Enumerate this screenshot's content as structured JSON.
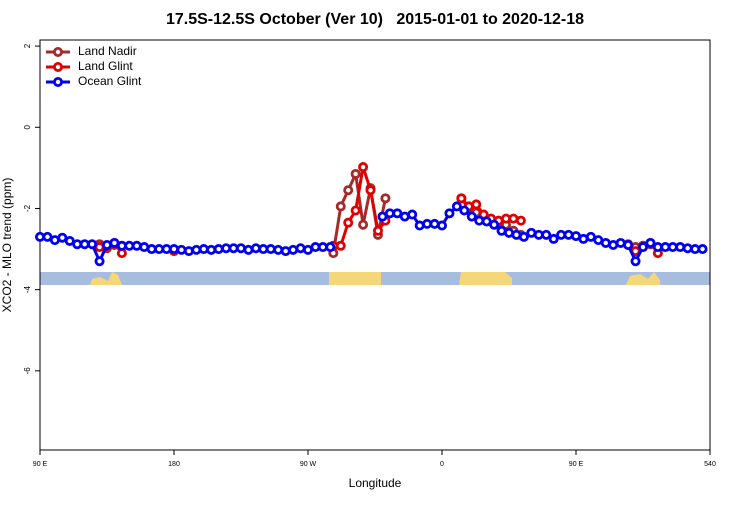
{
  "chart_data": {
    "type": "line",
    "title": "17.5S-12.5S October (Ver 10)   2015-01-01 to 2020-12-18",
    "xlabel": "Longitude",
    "ylabel": "XCO2 - MLO trend (ppm)",
    "xlim": [
      90,
      540
    ],
    "ylim": [
      -7.95,
      2.15
    ],
    "xticks": [
      {
        "value": 90,
        "label": "90 E"
      },
      180,
      {
        "value": 270,
        "label": "90 W"
      },
      {
        "value": 360,
        "label": "0"
      },
      {
        "value": 450,
        "label": "90 E"
      },
      540
    ],
    "yticks": [
      2,
      0,
      -2,
      -4,
      -6
    ],
    "legend": "topleft",
    "series": [
      {
        "name": "Land Nadir",
        "color": "#a52a2a",
        "x": [
          130,
          135,
          140,
          145,
          287,
          292,
          297,
          302,
          307,
          312,
          317,
          322,
          327,
          373,
          378,
          383,
          388,
          393,
          398,
          403,
          408,
          413,
          418,
          485,
          490,
          495,
          500
        ],
        "values": [
          -2.88,
          -2.98,
          -2.9,
          null,
          -3.1,
          -1.95,
          -1.55,
          -1.15,
          -2.4,
          -1.5,
          -2.65,
          -1.75,
          null,
          -1.75,
          -2.0,
          -2.1,
          -2.2,
          -2.3,
          -2.35,
          -2.4,
          -2.55,
          -2.65,
          null,
          -2.88,
          -2.95,
          -2.92,
          -2.88
        ]
      },
      {
        "name": "Land Glint",
        "color": "#e00000",
        "x": [
          130,
          135,
          140,
          145,
          150,
          180,
          185,
          287,
          292,
          297,
          302,
          307,
          312,
          317,
          322,
          327,
          373,
          378,
          383,
          388,
          393,
          398,
          403,
          408,
          413,
          418,
          485,
          490,
          495,
          500,
          505
        ],
        "values": [
          -2.95,
          -2.92,
          -2.85,
          -3.1,
          null,
          -3.05,
          null,
          -2.92,
          -2.92,
          -2.35,
          -2.05,
          -0.98,
          -1.55,
          -2.55,
          -2.3,
          null,
          -1.75,
          -1.95,
          -1.9,
          -2.15,
          -2.25,
          -2.3,
          -2.25,
          -2.25,
          -2.3,
          null,
          -2.9,
          -3.05,
          -2.95,
          -2.85,
          -3.1
        ]
      },
      {
        "name": "Ocean Glint",
        "color": "#0000ee",
        "x": [
          90,
          95,
          100,
          105,
          110,
          115,
          120,
          125,
          130,
          135,
          140,
          145,
          150,
          155,
          160,
          165,
          170,
          175,
          180,
          185,
          190,
          195,
          200,
          205,
          210,
          215,
          220,
          225,
          230,
          235,
          240,
          245,
          250,
          255,
          260,
          265,
          270,
          275,
          280,
          285,
          290,
          295,
          300,
          305,
          310,
          315,
          320,
          325,
          330,
          335,
          340,
          345,
          350,
          355,
          360,
          365,
          370,
          375,
          380,
          385,
          390,
          395,
          400,
          405,
          410,
          415,
          420,
          425,
          430,
          435,
          440,
          445,
          450,
          455,
          460,
          465,
          470,
          475,
          480,
          485,
          490,
          495,
          500,
          505,
          510,
          515,
          520,
          525,
          530,
          535
        ],
        "values": [
          -2.7,
          -2.7,
          -2.78,
          -2.72,
          -2.8,
          -2.88,
          -2.88,
          -2.88,
          -3.3,
          -2.9,
          -2.85,
          -2.92,
          -2.92,
          -2.92,
          -2.95,
          -3.0,
          -3.0,
          -3.0,
          -3.0,
          -3.02,
          -3.05,
          -3.02,
          -3.0,
          -3.02,
          -3.0,
          -2.98,
          -2.98,
          -2.98,
          -3.02,
          -2.98,
          -3.0,
          -3.0,
          -3.02,
          -3.05,
          -3.02,
          -2.98,
          -3.02,
          -2.95,
          -2.95,
          -2.95,
          null,
          null,
          null,
          null,
          null,
          null,
          -2.2,
          -2.12,
          -2.12,
          -2.2,
          -2.15,
          -2.42,
          -2.38,
          -2.38,
          -2.42,
          -2.12,
          -1.95,
          -2.05,
          -2.2,
          -2.3,
          -2.32,
          -2.4,
          -2.55,
          -2.6,
          -2.65,
          -2.7,
          -2.6,
          -2.65,
          -2.65,
          -2.75,
          -2.65,
          -2.65,
          -2.68,
          -2.75,
          -2.7,
          -2.78,
          -2.85,
          -2.9,
          -2.85,
          -2.9,
          -3.3,
          -2.95,
          -2.85,
          -2.95,
          -2.95,
          -2.95,
          -2.95,
          -2.98,
          -3.0,
          -3.0
        ]
      }
    ]
  }
}
